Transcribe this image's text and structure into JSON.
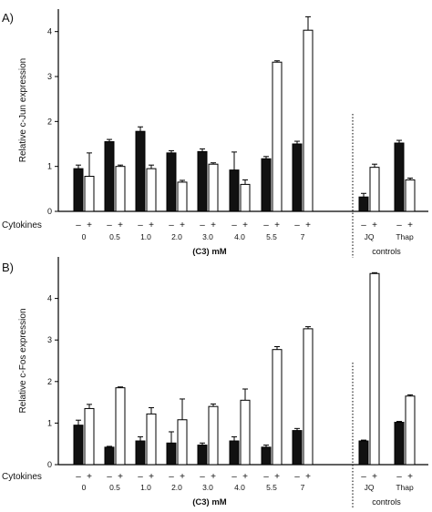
{
  "chart_data": [
    {
      "type": "bar",
      "panel_label": "A)",
      "ylabel": "Relative c-Jun expression",
      "ylim": [
        0,
        4.5
      ],
      "yticks": [
        0,
        1,
        2,
        3,
        4
      ],
      "row_label": "Cytokines",
      "minus_sign": "–",
      "plus_sign": "+",
      "categories": [
        "0",
        "0.5",
        "1.0",
        "2.0",
        "3.0",
        "4.0",
        "5.5",
        "7",
        "JQ",
        "Thap"
      ],
      "series": [
        {
          "color": "#111111",
          "values": [
            0.95,
            1.55,
            1.78,
            1.3,
            1.33,
            0.92,
            1.17,
            1.5,
            0.32,
            1.52
          ],
          "errors": [
            0.08,
            0.05,
            0.1,
            0.05,
            0.06,
            0.4,
            0.05,
            0.06,
            0.08,
            0.06
          ]
        },
        {
          "color": "#ffffff",
          "values": [
            0.78,
            1.0,
            0.95,
            0.65,
            1.05,
            0.6,
            3.32,
            4.03,
            0.98,
            0.7
          ],
          "errors": [
            0.52,
            0.03,
            0.08,
            0.04,
            0.03,
            0.1,
            0.03,
            0.3,
            0.07,
            0.04
          ]
        }
      ],
      "xlabel": "(C3) mM",
      "controls_label": "controls"
    },
    {
      "type": "bar",
      "panel_label": "B)",
      "ylabel": "Relative c-Fos expression",
      "ylim": [
        0,
        5
      ],
      "yticks": [
        0,
        1,
        2,
        3,
        4
      ],
      "row_label": "Cytokines",
      "minus_sign": "–",
      "plus_sign": "+",
      "categories": [
        "0",
        "0.5",
        "1.0",
        "2.0",
        "3.0",
        "4.0",
        "5.5",
        "7",
        "JQ",
        "Thap"
      ],
      "series": [
        {
          "color": "#111111",
          "values": [
            0.95,
            0.42,
            0.57,
            0.52,
            0.47,
            0.57,
            0.42,
            0.82,
            0.57,
            1.02
          ],
          "errors": [
            0.12,
            0.02,
            0.1,
            0.27,
            0.05,
            0.1,
            0.05,
            0.05,
            0.02,
            0.02
          ]
        },
        {
          "color": "#ffffff",
          "values": [
            1.35,
            1.85,
            1.22,
            1.08,
            1.4,
            1.55,
            2.77,
            3.27,
            4.6,
            1.65
          ],
          "errors": [
            0.1,
            0.02,
            0.15,
            0.5,
            0.06,
            0.27,
            0.07,
            0.05,
            0.02,
            0.03
          ]
        }
      ],
      "xlabel": "(C3) mM",
      "controls_label": "controls"
    }
  ]
}
